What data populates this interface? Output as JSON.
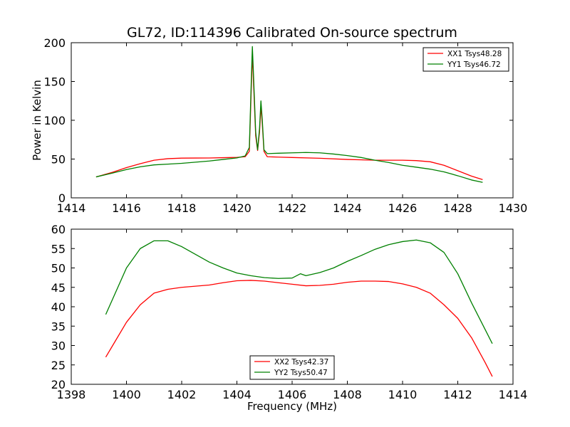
{
  "chart_data": [
    {
      "type": "line",
      "title": "GL72, ID:114396 Calibrated On-source spectrum",
      "xlabel": "",
      "ylabel": "Power in Kelvin",
      "xlim": [
        1414,
        1430
      ],
      "ylim": [
        0,
        200
      ],
      "xticks": [
        1414,
        1416,
        1418,
        1420,
        1422,
        1424,
        1426,
        1428,
        1430
      ],
      "yticks": [
        0,
        50,
        100,
        150,
        200
      ],
      "legend_position": "top-right",
      "series": [
        {
          "name": "XX1 Tsys48.28",
          "color": "#ff0000",
          "points": [
            [
              1414.9,
              27
            ],
            [
              1415.5,
              33
            ],
            [
              1416.0,
              39
            ],
            [
              1416.5,
              44
            ],
            [
              1417.0,
              48.5
            ],
            [
              1417.5,
              50.5
            ],
            [
              1418.0,
              51.2
            ],
            [
              1418.5,
              51.3
            ],
            [
              1419.0,
              51.4
            ],
            [
              1419.5,
              51.8
            ],
            [
              1420.0,
              52.2
            ],
            [
              1420.3,
              53
            ],
            [
              1420.45,
              60
            ],
            [
              1420.52,
              140
            ],
            [
              1420.56,
              186
            ],
            [
              1420.6,
              150
            ],
            [
              1420.68,
              80
            ],
            [
              1420.75,
              61
            ],
            [
              1420.82,
              85
            ],
            [
              1420.87,
              118
            ],
            [
              1420.92,
              95
            ],
            [
              1420.98,
              60
            ],
            [
              1421.1,
              53
            ],
            [
              1421.5,
              52.5
            ],
            [
              1422.0,
              52
            ],
            [
              1423.0,
              51
            ],
            [
              1424.0,
              49.5
            ],
            [
              1425.0,
              48.5
            ],
            [
              1426.0,
              48.5
            ],
            [
              1426.5,
              48
            ],
            [
              1427.0,
              46.5
            ],
            [
              1427.5,
              42
            ],
            [
              1428.0,
              35
            ],
            [
              1428.5,
              28
            ],
            [
              1428.9,
              23.5
            ]
          ]
        },
        {
          "name": "YY1 Tsys46.72",
          "color": "#008000",
          "points": [
            [
              1414.9,
              27
            ],
            [
              1415.5,
              32
            ],
            [
              1416.0,
              36.5
            ],
            [
              1416.5,
              40
            ],
            [
              1417.0,
              42.5
            ],
            [
              1417.5,
              43.5
            ],
            [
              1418.0,
              44.5
            ],
            [
              1418.5,
              46
            ],
            [
              1419.0,
              47.5
            ],
            [
              1419.5,
              49.5
            ],
            [
              1420.0,
              51.5
            ],
            [
              1420.3,
              54
            ],
            [
              1420.45,
              65
            ],
            [
              1420.52,
              150
            ],
            [
              1420.56,
              195
            ],
            [
              1420.6,
              160
            ],
            [
              1420.68,
              85
            ],
            [
              1420.75,
              62
            ],
            [
              1420.82,
              90
            ],
            [
              1420.87,
              125
            ],
            [
              1420.92,
              100
            ],
            [
              1420.98,
              62
            ],
            [
              1421.1,
              57
            ],
            [
              1421.5,
              57.5
            ],
            [
              1422.0,
              58
            ],
            [
              1422.5,
              58.5
            ],
            [
              1423.0,
              58
            ],
            [
              1423.5,
              56.5
            ],
            [
              1424.0,
              54.5
            ],
            [
              1424.5,
              52
            ],
            [
              1425.0,
              48.5
            ],
            [
              1425.5,
              45.5
            ],
            [
              1426.0,
              42
            ],
            [
              1426.5,
              39.5
            ],
            [
              1427.0,
              37
            ],
            [
              1427.5,
              33.5
            ],
            [
              1428.0,
              28.5
            ],
            [
              1428.5,
              23
            ],
            [
              1428.9,
              20
            ]
          ]
        }
      ]
    },
    {
      "type": "line",
      "title": "",
      "xlabel": "Frequency (MHz)",
      "ylabel": "",
      "xlim": [
        1398,
        1414
      ],
      "ylim": [
        20,
        60
      ],
      "xticks": [
        1398,
        1400,
        1402,
        1404,
        1406,
        1408,
        1410,
        1412,
        1414
      ],
      "yticks": [
        20,
        25,
        30,
        35,
        40,
        45,
        50,
        55,
        60
      ],
      "legend_position": "lower-center",
      "series": [
        {
          "name": "XX2 Tsys42.37",
          "color": "#ff0000",
          "points": [
            [
              1399.25,
              27
            ],
            [
              1399.5,
              30
            ],
            [
              1400.0,
              36
            ],
            [
              1400.5,
              40.5
            ],
            [
              1401.0,
              43.5
            ],
            [
              1401.5,
              44.5
            ],
            [
              1402.0,
              45
            ],
            [
              1402.5,
              45.3
            ],
            [
              1403.0,
              45.6
            ],
            [
              1403.5,
              46.2
            ],
            [
              1404.0,
              46.7
            ],
            [
              1404.5,
              46.8
            ],
            [
              1405.0,
              46.6
            ],
            [
              1405.5,
              46.2
            ],
            [
              1406.0,
              45.8
            ],
            [
              1406.5,
              45.4
            ],
            [
              1407.0,
              45.5
            ],
            [
              1407.5,
              45.8
            ],
            [
              1408.0,
              46.3
            ],
            [
              1408.5,
              46.6
            ],
            [
              1409.0,
              46.6
            ],
            [
              1409.5,
              46.5
            ],
            [
              1410.0,
              45.9
            ],
            [
              1410.5,
              45
            ],
            [
              1411.0,
              43.5
            ],
            [
              1411.5,
              40.5
            ],
            [
              1412.0,
              37
            ],
            [
              1412.5,
              32
            ],
            [
              1413.0,
              25.5
            ],
            [
              1413.25,
              22
            ]
          ]
        },
        {
          "name": "YY2 Tsys50.47",
          "color": "#008000",
          "points": [
            [
              1399.25,
              38
            ],
            [
              1399.5,
              42
            ],
            [
              1400.0,
              50
            ],
            [
              1400.5,
              55
            ],
            [
              1401.0,
              57
            ],
            [
              1401.5,
              57
            ],
            [
              1402.0,
              55.5
            ],
            [
              1402.5,
              53.5
            ],
            [
              1403.0,
              51.5
            ],
            [
              1403.5,
              50
            ],
            [
              1404.0,
              48.7
            ],
            [
              1404.5,
              48
            ],
            [
              1405.0,
              47.5
            ],
            [
              1405.5,
              47.3
            ],
            [
              1406.0,
              47.4
            ],
            [
              1406.3,
              48.5
            ],
            [
              1406.5,
              48
            ],
            [
              1407.0,
              48.8
            ],
            [
              1407.5,
              50
            ],
            [
              1408.0,
              51.7
            ],
            [
              1408.5,
              53.2
            ],
            [
              1409.0,
              54.8
            ],
            [
              1409.5,
              56
            ],
            [
              1410.0,
              56.8
            ],
            [
              1410.5,
              57.2
            ],
            [
              1411.0,
              56.5
            ],
            [
              1411.5,
              54
            ],
            [
              1412.0,
              48.5
            ],
            [
              1412.5,
              41
            ],
            [
              1413.0,
              34
            ],
            [
              1413.25,
              30.5
            ]
          ]
        }
      ]
    }
  ]
}
